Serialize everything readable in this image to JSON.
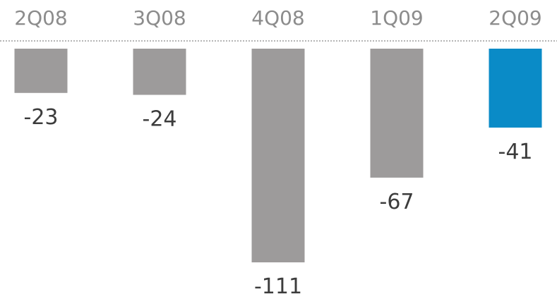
{
  "chart_data": {
    "type": "bar",
    "categories": [
      "2Q08",
      "3Q08",
      "4Q08",
      "1Q09",
      "2Q09"
    ],
    "values": [
      -23,
      -24,
      -111,
      -67,
      -41
    ],
    "value_labels": [
      "-23",
      "-24",
      "-111",
      "-67",
      "-41"
    ],
    "highlight_index": 4,
    "colors": {
      "bar": "#9d9b9b",
      "highlight": "#0a8bc7",
      "category_text": "#8c8c8c",
      "value_text": "#3c3c3c",
      "baseline": "#b5b5b5"
    },
    "legend": "none",
    "grid": false,
    "category_position": "top",
    "ylim": [
      -111,
      0
    ]
  }
}
